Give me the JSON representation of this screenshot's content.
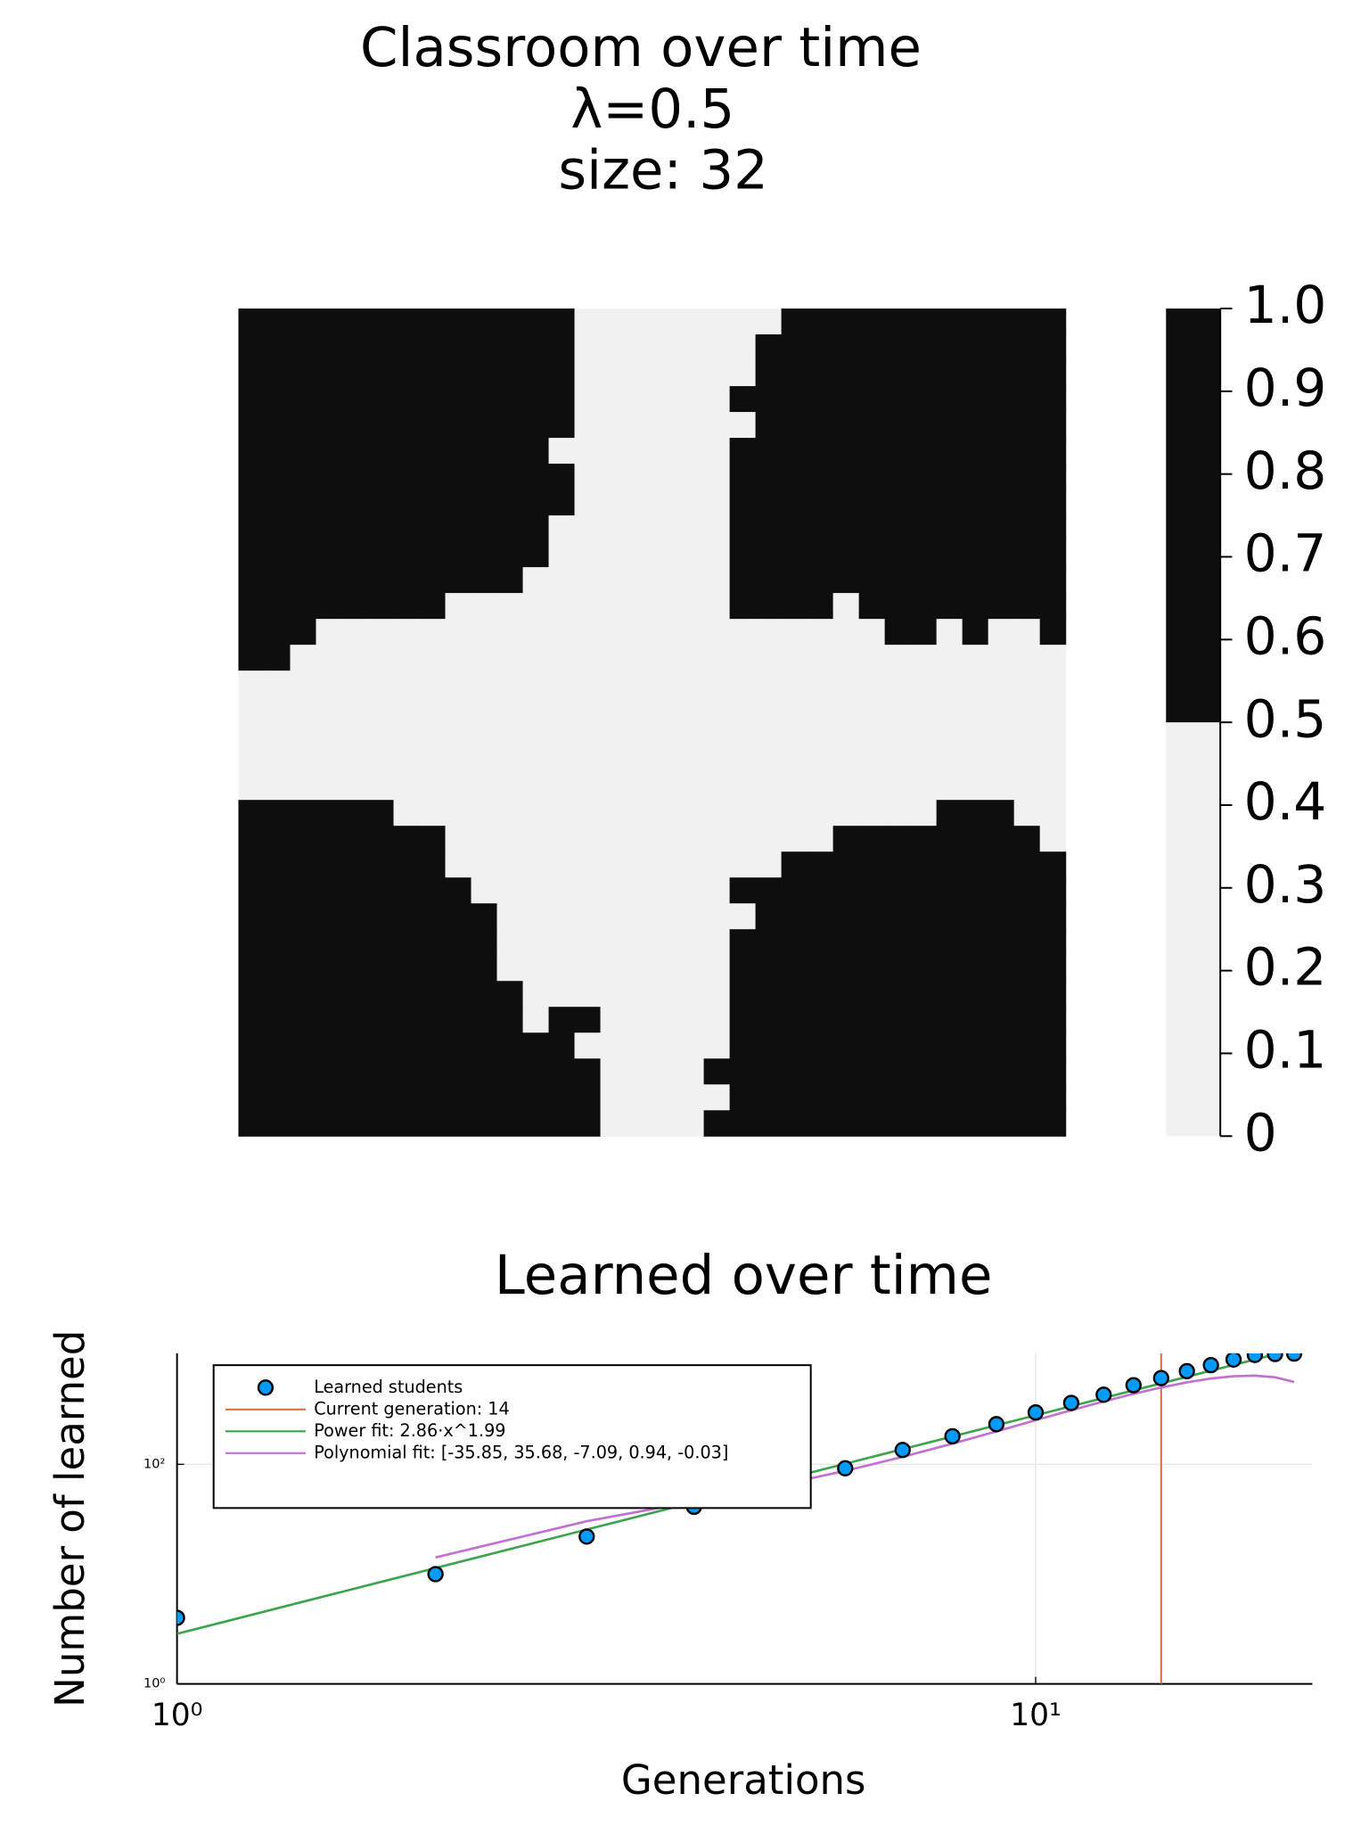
{
  "chart_data": [
    {
      "type": "heatmap",
      "title": [
        "Classroom over time",
        "λ=0.5",
        "size: 32"
      ],
      "clim": [
        0,
        1
      ],
      "cticks": [
        0,
        0.1,
        0.2,
        0.3,
        0.4,
        0.5,
        0.6,
        0.7,
        0.8,
        0.9,
        {
          "value": 1,
          "label": "1.0"
        }
      ],
      "colors": [
        "#f1f1f1",
        "#0e0e0e"
      ],
      "z": [
        [
          1,
          1,
          1,
          1,
          1,
          1,
          1,
          1,
          1,
          1,
          1,
          1,
          1,
          0,
          0,
          0,
          0,
          0,
          0,
          0,
          0,
          1,
          1,
          1,
          1,
          1,
          1,
          1,
          1,
          1,
          1,
          1
        ],
        [
          1,
          1,
          1,
          1,
          1,
          1,
          1,
          1,
          1,
          1,
          1,
          1,
          1,
          0,
          0,
          0,
          0,
          0,
          0,
          0,
          1,
          1,
          1,
          1,
          1,
          1,
          1,
          1,
          1,
          1,
          1,
          1
        ],
        [
          1,
          1,
          1,
          1,
          1,
          1,
          1,
          1,
          1,
          1,
          1,
          1,
          1,
          0,
          0,
          0,
          0,
          0,
          0,
          0,
          1,
          1,
          1,
          1,
          1,
          1,
          1,
          1,
          1,
          1,
          1,
          1
        ],
        [
          1,
          1,
          1,
          1,
          1,
          1,
          1,
          1,
          1,
          1,
          1,
          1,
          1,
          0,
          0,
          0,
          0,
          0,
          0,
          1,
          1,
          1,
          1,
          1,
          1,
          1,
          1,
          1,
          1,
          1,
          1,
          1
        ],
        [
          1,
          1,
          1,
          1,
          1,
          1,
          1,
          1,
          1,
          1,
          1,
          1,
          1,
          0,
          0,
          0,
          0,
          0,
          0,
          0,
          1,
          1,
          1,
          1,
          1,
          1,
          1,
          1,
          1,
          1,
          1,
          1
        ],
        [
          1,
          1,
          1,
          1,
          1,
          1,
          1,
          1,
          1,
          1,
          1,
          1,
          0,
          0,
          0,
          0,
          0,
          0,
          0,
          1,
          1,
          1,
          1,
          1,
          1,
          1,
          1,
          1,
          1,
          1,
          1,
          1
        ],
        [
          1,
          1,
          1,
          1,
          1,
          1,
          1,
          1,
          1,
          1,
          1,
          1,
          1,
          0,
          0,
          0,
          0,
          0,
          0,
          1,
          1,
          1,
          1,
          1,
          1,
          1,
          1,
          1,
          1,
          1,
          1,
          1
        ],
        [
          1,
          1,
          1,
          1,
          1,
          1,
          1,
          1,
          1,
          1,
          1,
          1,
          1,
          0,
          0,
          0,
          0,
          0,
          0,
          1,
          1,
          1,
          1,
          1,
          1,
          1,
          1,
          1,
          1,
          1,
          1,
          1
        ],
        [
          1,
          1,
          1,
          1,
          1,
          1,
          1,
          1,
          1,
          1,
          1,
          1,
          0,
          0,
          0,
          0,
          0,
          0,
          0,
          1,
          1,
          1,
          1,
          1,
          1,
          1,
          1,
          1,
          1,
          1,
          1,
          1
        ],
        [
          1,
          1,
          1,
          1,
          1,
          1,
          1,
          1,
          1,
          1,
          1,
          1,
          0,
          0,
          0,
          0,
          0,
          0,
          0,
          1,
          1,
          1,
          1,
          1,
          1,
          1,
          1,
          1,
          1,
          1,
          1,
          1
        ],
        [
          1,
          1,
          1,
          1,
          1,
          1,
          1,
          1,
          1,
          1,
          1,
          0,
          0,
          0,
          0,
          0,
          0,
          0,
          0,
          1,
          1,
          1,
          1,
          1,
          1,
          1,
          1,
          1,
          1,
          1,
          1,
          1
        ],
        [
          1,
          1,
          1,
          1,
          1,
          1,
          1,
          1,
          0,
          0,
          0,
          0,
          0,
          0,
          0,
          0,
          0,
          0,
          0,
          1,
          1,
          1,
          1,
          0,
          1,
          1,
          1,
          1,
          1,
          1,
          1,
          1
        ],
        [
          1,
          1,
          1,
          0,
          0,
          0,
          0,
          0,
          0,
          0,
          0,
          0,
          0,
          0,
          0,
          0,
          0,
          0,
          0,
          0,
          0,
          0,
          0,
          0,
          0,
          1,
          1,
          0,
          1,
          0,
          0,
          1
        ],
        [
          1,
          1,
          0,
          0,
          0,
          0,
          0,
          0,
          0,
          0,
          0,
          0,
          0,
          0,
          0,
          0,
          0,
          0,
          0,
          0,
          0,
          0,
          0,
          0,
          0,
          0,
          0,
          0,
          0,
          0,
          0,
          0
        ],
        [
          0,
          0,
          0,
          0,
          0,
          0,
          0,
          0,
          0,
          0,
          0,
          0,
          0,
          0,
          0,
          0,
          0,
          0,
          0,
          0,
          0,
          0,
          0,
          0,
          0,
          0,
          0,
          0,
          0,
          0,
          0,
          0
        ],
        [
          0,
          0,
          0,
          0,
          0,
          0,
          0,
          0,
          0,
          0,
          0,
          0,
          0,
          0,
          0,
          0,
          0,
          0,
          0,
          0,
          0,
          0,
          0,
          0,
          0,
          0,
          0,
          0,
          0,
          0,
          0,
          0
        ],
        [
          0,
          0,
          0,
          0,
          0,
          0,
          0,
          0,
          0,
          0,
          0,
          0,
          0,
          0,
          0,
          0,
          0,
          0,
          0,
          0,
          0,
          0,
          0,
          0,
          0,
          0,
          0,
          0,
          0,
          0,
          0,
          0
        ],
        [
          0,
          0,
          0,
          0,
          0,
          0,
          0,
          0,
          0,
          0,
          0,
          0,
          0,
          0,
          0,
          0,
          0,
          0,
          0,
          0,
          0,
          0,
          0,
          0,
          0,
          0,
          0,
          0,
          0,
          0,
          0,
          0
        ],
        [
          0,
          0,
          0,
          0,
          0,
          0,
          0,
          0,
          0,
          0,
          0,
          0,
          0,
          0,
          0,
          0,
          0,
          0,
          0,
          0,
          0,
          0,
          0,
          0,
          0,
          0,
          0,
          0,
          0,
          0,
          0,
          0
        ],
        [
          1,
          1,
          1,
          1,
          1,
          1,
          0,
          0,
          0,
          0,
          0,
          0,
          0,
          0,
          0,
          0,
          0,
          0,
          0,
          0,
          0,
          0,
          0,
          0,
          0,
          0,
          0,
          1,
          1,
          1,
          0,
          0
        ],
        [
          1,
          1,
          1,
          1,
          1,
          1,
          1,
          1,
          0,
          0,
          0,
          0,
          0,
          0,
          0,
          0,
          0,
          0,
          0,
          0,
          0,
          0,
          0,
          1,
          1,
          1,
          1,
          1,
          1,
          1,
          1,
          0
        ],
        [
          1,
          1,
          1,
          1,
          1,
          1,
          1,
          1,
          0,
          0,
          0,
          0,
          0,
          0,
          0,
          0,
          0,
          0,
          0,
          0,
          0,
          1,
          1,
          1,
          1,
          1,
          1,
          1,
          1,
          1,
          1,
          1
        ],
        [
          1,
          1,
          1,
          1,
          1,
          1,
          1,
          1,
          1,
          0,
          0,
          0,
          0,
          0,
          0,
          0,
          0,
          0,
          0,
          1,
          1,
          1,
          1,
          1,
          1,
          1,
          1,
          1,
          1,
          1,
          1,
          1
        ],
        [
          1,
          1,
          1,
          1,
          1,
          1,
          1,
          1,
          1,
          1,
          0,
          0,
          0,
          0,
          0,
          0,
          0,
          0,
          0,
          0,
          1,
          1,
          1,
          1,
          1,
          1,
          1,
          1,
          1,
          1,
          1,
          1
        ],
        [
          1,
          1,
          1,
          1,
          1,
          1,
          1,
          1,
          1,
          1,
          0,
          0,
          0,
          0,
          0,
          0,
          0,
          0,
          0,
          1,
          1,
          1,
          1,
          1,
          1,
          1,
          1,
          1,
          1,
          1,
          1,
          1
        ],
        [
          1,
          1,
          1,
          1,
          1,
          1,
          1,
          1,
          1,
          1,
          0,
          0,
          0,
          0,
          0,
          0,
          0,
          0,
          0,
          1,
          1,
          1,
          1,
          1,
          1,
          1,
          1,
          1,
          1,
          1,
          1,
          1
        ],
        [
          1,
          1,
          1,
          1,
          1,
          1,
          1,
          1,
          1,
          1,
          1,
          0,
          0,
          0,
          0,
          0,
          0,
          0,
          0,
          1,
          1,
          1,
          1,
          1,
          1,
          1,
          1,
          1,
          1,
          1,
          1,
          1
        ],
        [
          1,
          1,
          1,
          1,
          1,
          1,
          1,
          1,
          1,
          1,
          1,
          0,
          1,
          1,
          0,
          0,
          0,
          0,
          0,
          1,
          1,
          1,
          1,
          1,
          1,
          1,
          1,
          1,
          1,
          1,
          1,
          1
        ],
        [
          1,
          1,
          1,
          1,
          1,
          1,
          1,
          1,
          1,
          1,
          1,
          1,
          1,
          0,
          0,
          0,
          0,
          0,
          0,
          1,
          1,
          1,
          1,
          1,
          1,
          1,
          1,
          1,
          1,
          1,
          1,
          1
        ],
        [
          1,
          1,
          1,
          1,
          1,
          1,
          1,
          1,
          1,
          1,
          1,
          1,
          1,
          1,
          0,
          0,
          0,
          0,
          1,
          1,
          1,
          1,
          1,
          1,
          1,
          1,
          1,
          1,
          1,
          1,
          1,
          1
        ],
        [
          1,
          1,
          1,
          1,
          1,
          1,
          1,
          1,
          1,
          1,
          1,
          1,
          1,
          1,
          0,
          0,
          0,
          0,
          0,
          1,
          1,
          1,
          1,
          1,
          1,
          1,
          1,
          1,
          1,
          1,
          1,
          1
        ],
        [
          1,
          1,
          1,
          1,
          1,
          1,
          1,
          1,
          1,
          1,
          1,
          1,
          1,
          1,
          0,
          0,
          0,
          0,
          1,
          1,
          1,
          1,
          1,
          1,
          1,
          1,
          1,
          1,
          1,
          1,
          1,
          1
        ]
      ]
    },
    {
      "type": "scatter",
      "title": "Learned over time",
      "xlabel": "Generations",
      "ylabel": "Number of learned",
      "xscale": "log",
      "yscale": "log",
      "xlim": [
        1,
        21
      ],
      "ylim": [
        1,
        1024
      ],
      "xticks": [
        {
          "value": 1,
          "label": "10⁰"
        },
        {
          "value": 10,
          "label": "10¹"
        }
      ],
      "yticks": [
        {
          "value": 1,
          "label": "10⁰"
        },
        {
          "value": 100,
          "label": "10²"
        }
      ],
      "grid": true,
      "legend": "top-left",
      "series": [
        {
          "name": "Learned students",
          "color": "#009af9",
          "type": "points",
          "x": [
            1,
            2,
            3,
            4,
            5,
            6,
            7,
            8,
            9,
            10,
            11,
            12,
            13,
            14,
            15,
            16,
            17,
            18,
            19,
            20
          ],
          "values": [
            4,
            10,
            22,
            41,
            62,
            92,
            135,
            180,
            232,
            297,
            362,
            430,
            525,
            610,
            705,
            800,
            900,
            990,
            1010,
            1020
          ]
        },
        {
          "name": "Current generation: 14",
          "color": "#e26f46",
          "type": "vline",
          "x": 14
        },
        {
          "name": "Power fit: 2.86·x^1.99",
          "color": "#3da44d",
          "type": "power",
          "coefficients": [
            2.86,
            1.99
          ]
        },
        {
          "name": "Polynomial fit: [-35.85, 35.68, -7.09, 0.94, -0.03]",
          "color": "#c271d2",
          "type": "polynomial",
          "coefficients": [
            -35.85,
            35.68,
            -7.09,
            0.94,
            -0.03
          ]
        }
      ]
    }
  ]
}
